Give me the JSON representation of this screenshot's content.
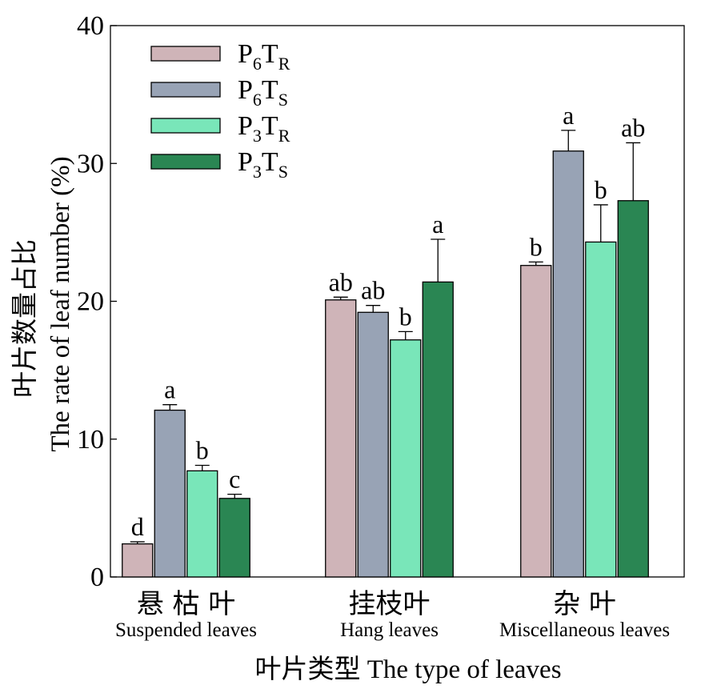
{
  "chart_data": {
    "type": "bar",
    "xlabel": "叶片类型 The type of leaves",
    "ylabel_zh": "叶片数量占比",
    "ylabel_en": "The rate of leaf number (%)",
    "ylim": [
      0,
      40
    ],
    "yticks": [
      "0",
      "10",
      "20",
      "30",
      "40"
    ],
    "grid": false,
    "legend_position": "top-left",
    "categories": [
      {
        "zh": "悬 枯 叶",
        "en": "Suspended leaves"
      },
      {
        "zh": "挂枝叶",
        "en": "Hang leaves"
      },
      {
        "zh": "杂 叶",
        "en": "Miscellaneous leaves"
      }
    ],
    "series": [
      {
        "name": "P6TR",
        "legend_main": [
          "P",
          "T"
        ],
        "legend_sub": [
          "6",
          "R"
        ],
        "color": "#cfb4b8",
        "values": [
          2.4,
          20.1,
          22.6
        ],
        "errors": [
          0.15,
          0.2,
          0.25
        ],
        "letters": [
          "d",
          "ab",
          "b"
        ]
      },
      {
        "name": "P6TS",
        "legend_main": [
          "P",
          "T"
        ],
        "legend_sub": [
          "6",
          "S"
        ],
        "color": "#98a3b5",
        "values": [
          12.1,
          19.2,
          30.9
        ],
        "errors": [
          0.4,
          0.5,
          1.5
        ],
        "letters": [
          "a",
          "ab",
          "a"
        ]
      },
      {
        "name": "P3TR",
        "legend_main": [
          "P",
          "T"
        ],
        "legend_sub": [
          "3",
          "R"
        ],
        "color": "#79e6b9",
        "values": [
          7.7,
          17.2,
          24.3
        ],
        "errors": [
          0.4,
          0.6,
          2.7
        ],
        "letters": [
          "b",
          "b",
          "b"
        ]
      },
      {
        "name": "P3TS",
        "legend_main": [
          "P",
          "T"
        ],
        "legend_sub": [
          "3",
          "S"
        ],
        "color": "#2a8653",
        "values": [
          5.7,
          21.4,
          27.3
        ],
        "errors": [
          0.3,
          3.1,
          4.2
        ],
        "letters": [
          "c",
          "a",
          "ab"
        ]
      }
    ]
  }
}
